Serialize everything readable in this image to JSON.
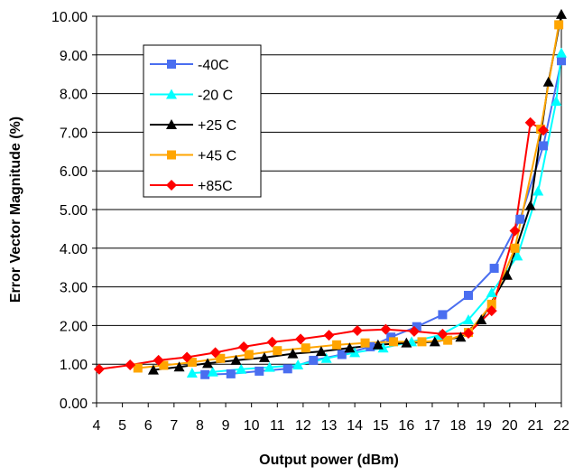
{
  "chart_data": {
    "type": "line",
    "title": "",
    "xlabel": "Output power (dBm)",
    "ylabel": "Error Vector Magnitude (%)",
    "xlim": [
      4,
      22
    ],
    "ylim": [
      0,
      10
    ],
    "x_ticks": [
      "4",
      "5",
      "6",
      "7",
      "8",
      "9",
      "10",
      "11",
      "12",
      "13",
      "14",
      "15",
      "16",
      "17",
      "18",
      "19",
      "20",
      "21",
      "22"
    ],
    "y_ticks": [
      "0.00",
      "1.00",
      "2.00",
      "3.00",
      "4.00",
      "5.00",
      "6.00",
      "7.00",
      "8.00",
      "9.00",
      "10.00"
    ],
    "grid": "horizontal",
    "legend_position": "upper-left",
    "series": [
      {
        "name": "-40C",
        "color": "#4a6ef0",
        "marker": "square",
        "points": [
          [
            8.2,
            0.73
          ],
          [
            9.2,
            0.75
          ],
          [
            10.3,
            0.82
          ],
          [
            11.4,
            0.88
          ],
          [
            12.4,
            1.1
          ],
          [
            13.5,
            1.25
          ],
          [
            14.6,
            1.45
          ],
          [
            15.4,
            1.7
          ],
          [
            16.4,
            1.97
          ],
          [
            17.4,
            2.28
          ],
          [
            18.4,
            2.78
          ],
          [
            19.4,
            3.48
          ],
          [
            20.4,
            4.75
          ],
          [
            21.3,
            6.65
          ],
          [
            22.0,
            8.85
          ]
        ]
      },
      {
        "name": "-20 C",
        "color": "#00ffff",
        "marker": "triangle",
        "points": [
          [
            7.7,
            0.77
          ],
          [
            8.5,
            0.8
          ],
          [
            9.6,
            0.87
          ],
          [
            10.7,
            0.92
          ],
          [
            11.8,
            0.98
          ],
          [
            12.9,
            1.15
          ],
          [
            14.0,
            1.3
          ],
          [
            15.1,
            1.42
          ],
          [
            16.2,
            1.58
          ],
          [
            17.3,
            1.75
          ],
          [
            18.4,
            2.15
          ],
          [
            19.3,
            2.85
          ],
          [
            20.3,
            3.8
          ],
          [
            21.1,
            5.48
          ],
          [
            21.8,
            7.8
          ],
          [
            22.0,
            9.05
          ]
        ]
      },
      {
        "name": "+25 C",
        "color": "#000000",
        "marker": "triangle",
        "points": [
          [
            6.2,
            0.85
          ],
          [
            7.2,
            0.93
          ],
          [
            8.3,
            1.02
          ],
          [
            9.4,
            1.1
          ],
          [
            10.5,
            1.17
          ],
          [
            11.6,
            1.27
          ],
          [
            12.7,
            1.33
          ],
          [
            13.8,
            1.42
          ],
          [
            14.9,
            1.5
          ],
          [
            16.0,
            1.55
          ],
          [
            17.1,
            1.58
          ],
          [
            18.1,
            1.7
          ],
          [
            18.9,
            2.15
          ],
          [
            19.9,
            3.3
          ],
          [
            20.8,
            5.1
          ],
          [
            21.5,
            8.3
          ],
          [
            22.0,
            10.05
          ]
        ]
      },
      {
        "name": "+45 C",
        "color": "#ffa500",
        "marker": "square",
        "points": [
          [
            5.6,
            0.9
          ],
          [
            6.6,
            0.97
          ],
          [
            7.7,
            1.05
          ],
          [
            8.8,
            1.15
          ],
          [
            9.9,
            1.25
          ],
          [
            11.0,
            1.35
          ],
          [
            12.1,
            1.42
          ],
          [
            13.3,
            1.5
          ],
          [
            14.4,
            1.55
          ],
          [
            15.5,
            1.58
          ],
          [
            16.6,
            1.58
          ],
          [
            17.6,
            1.62
          ],
          [
            18.4,
            1.82
          ],
          [
            19.3,
            2.55
          ],
          [
            20.2,
            4.0
          ],
          [
            21.2,
            7.08
          ],
          [
            21.9,
            9.78
          ]
        ]
      },
      {
        "name": "+85C",
        "color": "#ff0000",
        "marker": "diamond",
        "points": [
          [
            4.1,
            0.87
          ],
          [
            5.3,
            0.98
          ],
          [
            6.4,
            1.1
          ],
          [
            7.5,
            1.18
          ],
          [
            8.6,
            1.3
          ],
          [
            9.7,
            1.45
          ],
          [
            10.8,
            1.57
          ],
          [
            11.9,
            1.65
          ],
          [
            13.0,
            1.75
          ],
          [
            14.1,
            1.87
          ],
          [
            15.2,
            1.9
          ],
          [
            16.3,
            1.85
          ],
          [
            17.4,
            1.78
          ],
          [
            18.4,
            1.8
          ],
          [
            19.3,
            2.38
          ],
          [
            20.2,
            4.45
          ],
          [
            20.8,
            7.25
          ],
          [
            21.3,
            7.05
          ]
        ]
      }
    ]
  }
}
